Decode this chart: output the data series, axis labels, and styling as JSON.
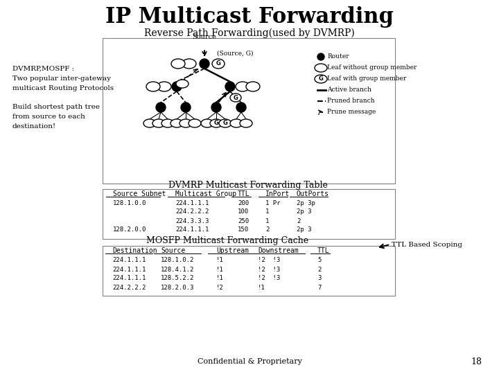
{
  "title": "IP Multicast Forwarding",
  "title_fontsize": 22,
  "subtitle": "Reverse Path Forwarding(used by DVMRP)",
  "subtitle_fontsize": 10,
  "left_text_1": "DVMRP,MOSPF :\nTwo popular inter-gateway\nmulticast Routing Protocols",
  "left_text_2": "Build shortest path tree\nfrom source to each\ndestination!",
  "dvmrp_table_title": "DVMRP Multicast Forwarding Table",
  "dvmrp_header": [
    "Source Subnet",
    "Multicast Group",
    "TTL",
    "InPort",
    "OutPorts"
  ],
  "dvmrp_rows": [
    [
      "128.1.0.0",
      "224.1.1.1",
      "200",
      "1 Pr",
      "2p 3p"
    ],
    [
      "",
      "224.2.2.2",
      "100",
      "1",
      "2p 3"
    ],
    [
      "",
      "224.3.3.3",
      "250",
      "1",
      "2"
    ],
    [
      "128.2.0.0",
      "224.1.1.1",
      "150",
      "2",
      "2p 3"
    ]
  ],
  "mosfp_table_title": "MOSFP Multicast Forwarding Cache",
  "mosfp_header": [
    "Destination",
    "Source",
    "Upstream",
    "Downstream",
    "TTL"
  ],
  "mosfp_rows": [
    [
      "224.1.1.1",
      "128.1.0.2",
      "!1",
      "!2  !3",
      "5"
    ],
    [
      "224.1.1.1",
      "128.4.1.2",
      "!1",
      "!2  !3",
      "2"
    ],
    [
      "224.1.1.1",
      "128.5.2.2",
      "!1",
      "!2  !3",
      "3"
    ],
    [
      "224.2.2.2",
      "128.2.0.3",
      "!2",
      "!1",
      "7"
    ]
  ],
  "ttl_note": "TTL Based Scoping",
  "footer": "Confidential & Proprietary",
  "page_num": "18",
  "bg_color": "#ffffff",
  "legend_items": [
    "Router",
    "Leaf without group member",
    "Leaf with group member",
    "Active branch",
    "Pruned branch",
    "Prune message"
  ]
}
